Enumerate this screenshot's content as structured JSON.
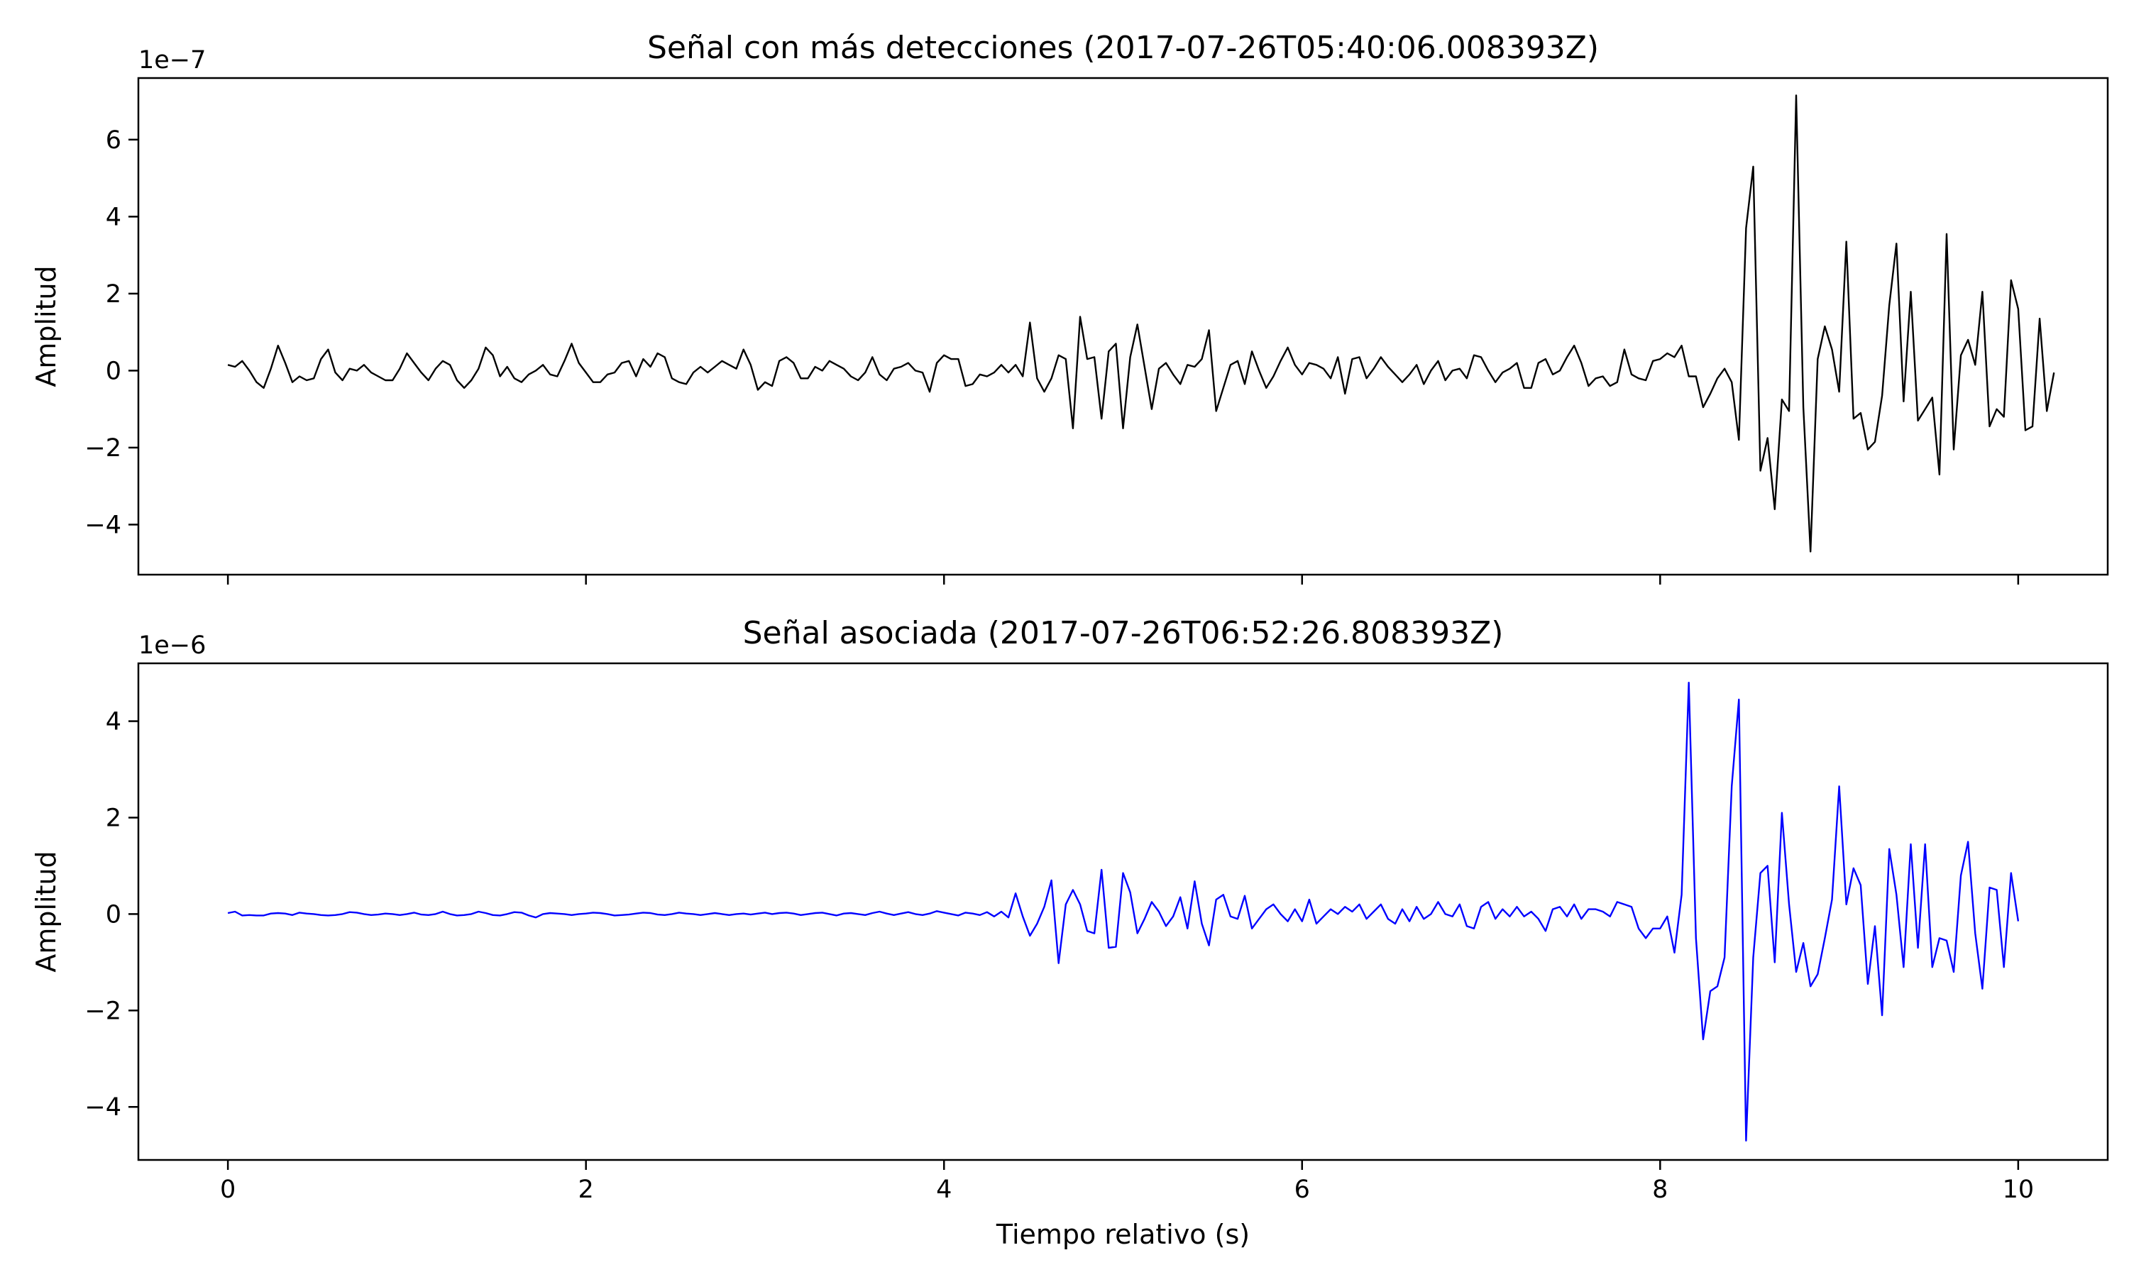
{
  "chart_data": [
    {
      "type": "line",
      "title": "Señal con más detecciones (2017-07-26T05:40:06.008393Z)",
      "xlabel": "",
      "ylabel": "Amplitud",
      "offset_text": "1e−7",
      "xlim": [
        -0.5,
        10.5
      ],
      "ylim": [
        -5.3,
        7.6
      ],
      "xticks": [
        0,
        2,
        4,
        6,
        8,
        10
      ],
      "xtick_labels": [],
      "yticks": [
        -4,
        -2,
        0,
        2,
        4,
        6
      ],
      "ytick_labels": [
        "−4",
        "−2",
        "0",
        "2",
        "4",
        "6"
      ],
      "grid": false,
      "legend": false,
      "color": "#000000",
      "x_step": 0.04,
      "series": [
        {
          "values": [
            0.15,
            0.1,
            0.25,
            0.0,
            -0.3,
            -0.45,
            0.05,
            0.65,
            0.2,
            -0.3,
            -0.15,
            -0.25,
            -0.2,
            0.3,
            0.55,
            -0.05,
            -0.25,
            0.05,
            0.0,
            0.15,
            -0.05,
            -0.15,
            -0.25,
            -0.25,
            0.05,
            0.45,
            0.2,
            -0.05,
            -0.25,
            0.05,
            0.25,
            0.15,
            -0.25,
            -0.45,
            -0.25,
            0.05,
            0.6,
            0.4,
            -0.15,
            0.1,
            -0.2,
            -0.3,
            -0.1,
            0.0,
            0.15,
            -0.1,
            -0.15,
            0.25,
            0.7,
            0.2,
            -0.05,
            -0.3,
            -0.3,
            -0.1,
            -0.05,
            0.2,
            0.25,
            -0.15,
            0.3,
            0.1,
            0.45,
            0.35,
            -0.2,
            -0.3,
            -0.35,
            -0.05,
            0.1,
            -0.05,
            0.1,
            0.25,
            0.15,
            0.05,
            0.55,
            0.15,
            -0.5,
            -0.3,
            -0.4,
            0.25,
            0.35,
            0.2,
            -0.2,
            -0.2,
            0.1,
            0.0,
            0.25,
            0.15,
            0.05,
            -0.15,
            -0.25,
            -0.05,
            0.35,
            -0.1,
            -0.25,
            0.05,
            0.1,
            0.2,
            0.0,
            -0.05,
            -0.55,
            0.2,
            0.4,
            0.3,
            0.3,
            -0.4,
            -0.35,
            -0.1,
            -0.15,
            -0.05,
            0.15,
            -0.05,
            0.15,
            -0.15,
            1.25,
            -0.2,
            -0.55,
            -0.2,
            0.4,
            0.3,
            -1.5,
            1.4,
            0.3,
            0.35,
            -1.25,
            0.5,
            0.7,
            -1.5,
            0.35,
            1.2,
            0.1,
            -1.0,
            0.05,
            0.2,
            -0.1,
            -0.35,
            0.15,
            0.1,
            0.3,
            1.05,
            -1.05,
            -0.45,
            0.15,
            0.25,
            -0.35,
            0.5,
            0.0,
            -0.45,
            -0.15,
            0.25,
            0.6,
            0.15,
            -0.1,
            0.2,
            0.15,
            0.05,
            -0.2,
            0.35,
            -0.6,
            0.3,
            0.35,
            -0.2,
            0.05,
            0.35,
            0.1,
            -0.1,
            -0.3,
            -0.1,
            0.15,
            -0.35,
            0.0,
            0.25,
            -0.25,
            0.0,
            0.05,
            -0.2,
            0.4,
            0.35,
            0.0,
            -0.3,
            -0.05,
            0.05,
            0.2,
            -0.45,
            -0.45,
            0.2,
            0.3,
            -0.1,
            0.0,
            0.35,
            0.65,
            0.2,
            -0.4,
            -0.2,
            -0.15,
            -0.4,
            -0.3,
            0.55,
            -0.1,
            -0.2,
            -0.25,
            0.25,
            0.3,
            0.45,
            0.35,
            0.65,
            -0.15,
            -0.15,
            -0.95,
            -0.6,
            -0.2,
            0.05,
            -0.3,
            -1.8,
            3.7,
            5.3,
            -2.6,
            -1.75,
            -3.6,
            -0.75,
            -1.05,
            7.15,
            -0.95,
            -4.7,
            0.3,
            1.15,
            0.55,
            -0.55,
            3.35,
            -1.25,
            -1.1,
            -2.05,
            -1.85,
            -0.65,
            1.7,
            3.3,
            -0.8,
            2.05,
            -1.3,
            -1.0,
            -0.7,
            -2.7,
            3.55,
            -2.05,
            0.4,
            0.8,
            0.15,
            2.05,
            -1.45,
            -1.0,
            -1.2,
            2.35,
            1.6,
            -1.55,
            -1.45,
            1.35,
            -1.05,
            -0.05
          ]
        }
      ]
    },
    {
      "type": "line",
      "title": "Señal asociada (2017-07-26T06:52:26.808393Z)",
      "xlabel": "Tiempo relativo (s)",
      "ylabel": "Amplitud",
      "offset_text": "1e−6",
      "xlim": [
        -0.5,
        10.5
      ],
      "ylim": [
        -5.1,
        5.2
      ],
      "xticks": [
        0,
        2,
        4,
        6,
        8,
        10
      ],
      "xtick_labels": [
        "0",
        "2",
        "4",
        "6",
        "8",
        "10"
      ],
      "yticks": [
        -4,
        -2,
        0,
        2,
        4
      ],
      "ytick_labels": [
        "−4",
        "−2",
        "0",
        "2",
        "4"
      ],
      "grid": false,
      "legend": false,
      "color": "#0000ff",
      "x_step": 0.04,
      "series": [
        {
          "values": [
            0.02,
            0.05,
            -0.03,
            -0.02,
            -0.03,
            -0.03,
            0.01,
            0.02,
            0.01,
            -0.02,
            0.03,
            0.01,
            0.0,
            -0.02,
            -0.03,
            -0.02,
            0.0,
            0.04,
            0.03,
            0.0,
            -0.02,
            -0.01,
            0.01,
            0.0,
            -0.02,
            0.0,
            0.03,
            -0.01,
            -0.02,
            0.0,
            0.05,
            0.0,
            -0.03,
            -0.02,
            0.0,
            0.05,
            0.02,
            -0.02,
            -0.03,
            0.0,
            0.04,
            0.03,
            -0.03,
            -0.07,
            0.0,
            0.02,
            0.01,
            0.0,
            -0.02,
            0.0,
            0.01,
            0.03,
            0.02,
            0.0,
            -0.03,
            -0.02,
            -0.01,
            0.01,
            0.03,
            0.02,
            -0.01,
            -0.02,
            0.0,
            0.03,
            0.01,
            0.0,
            -0.02,
            0.0,
            0.02,
            0.0,
            -0.02,
            0.0,
            0.01,
            -0.01,
            0.01,
            0.03,
            0.0,
            0.02,
            0.03,
            0.01,
            -0.02,
            0.0,
            0.02,
            0.03,
            0.0,
            -0.03,
            0.01,
            0.02,
            0.0,
            -0.02,
            0.02,
            0.05,
            0.01,
            -0.02,
            0.01,
            0.04,
            0.0,
            -0.02,
            0.01,
            0.06,
            0.03,
            0.0,
            -0.03,
            0.03,
            0.01,
            -0.02,
            0.04,
            -0.05,
            0.05,
            -0.07,
            0.43,
            -0.05,
            -0.45,
            -0.2,
            0.15,
            0.7,
            -1.02,
            0.2,
            0.5,
            0.2,
            -0.35,
            -0.4,
            0.92,
            -0.7,
            -0.68,
            0.85,
            0.45,
            -0.4,
            -0.1,
            0.25,
            0.05,
            -0.25,
            -0.05,
            0.35,
            -0.3,
            0.68,
            -0.2,
            -0.65,
            0.3,
            0.4,
            -0.05,
            -0.1,
            0.38,
            -0.3,
            -0.1,
            0.1,
            0.2,
            0.0,
            -0.15,
            0.1,
            -0.15,
            0.3,
            -0.2,
            -0.05,
            0.1,
            0.0,
            0.15,
            0.05,
            0.2,
            -0.1,
            0.05,
            0.2,
            -0.1,
            -0.2,
            0.1,
            -0.15,
            0.15,
            -0.1,
            0.0,
            0.25,
            0.0,
            -0.05,
            0.2,
            -0.25,
            -0.3,
            0.15,
            0.25,
            -0.1,
            0.1,
            -0.05,
            0.15,
            -0.05,
            0.05,
            -0.1,
            -0.35,
            0.1,
            0.15,
            -0.05,
            0.2,
            -0.1,
            0.1,
            0.1,
            0.05,
            -0.05,
            0.25,
            0.2,
            0.15,
            -0.3,
            -0.5,
            -0.3,
            -0.3,
            -0.05,
            -0.8,
            0.4,
            4.8,
            -0.5,
            -2.6,
            -1.6,
            -1.5,
            -0.9,
            2.65,
            4.45,
            -4.7,
            -0.9,
            0.85,
            1.0,
            -1.0,
            2.1,
            0.2,
            -1.2,
            -0.6,
            -1.5,
            -1.25,
            -0.5,
            0.3,
            2.65,
            0.2,
            0.95,
            0.6,
            -1.45,
            -0.25,
            -2.1,
            1.35,
            0.4,
            -1.1,
            1.45,
            -0.7,
            1.45,
            -1.1,
            -0.5,
            -0.55,
            -1.2,
            0.8,
            1.5,
            -0.4,
            -1.55,
            0.55,
            0.5,
            -1.1,
            0.85,
            -0.15
          ]
        }
      ]
    }
  ]
}
